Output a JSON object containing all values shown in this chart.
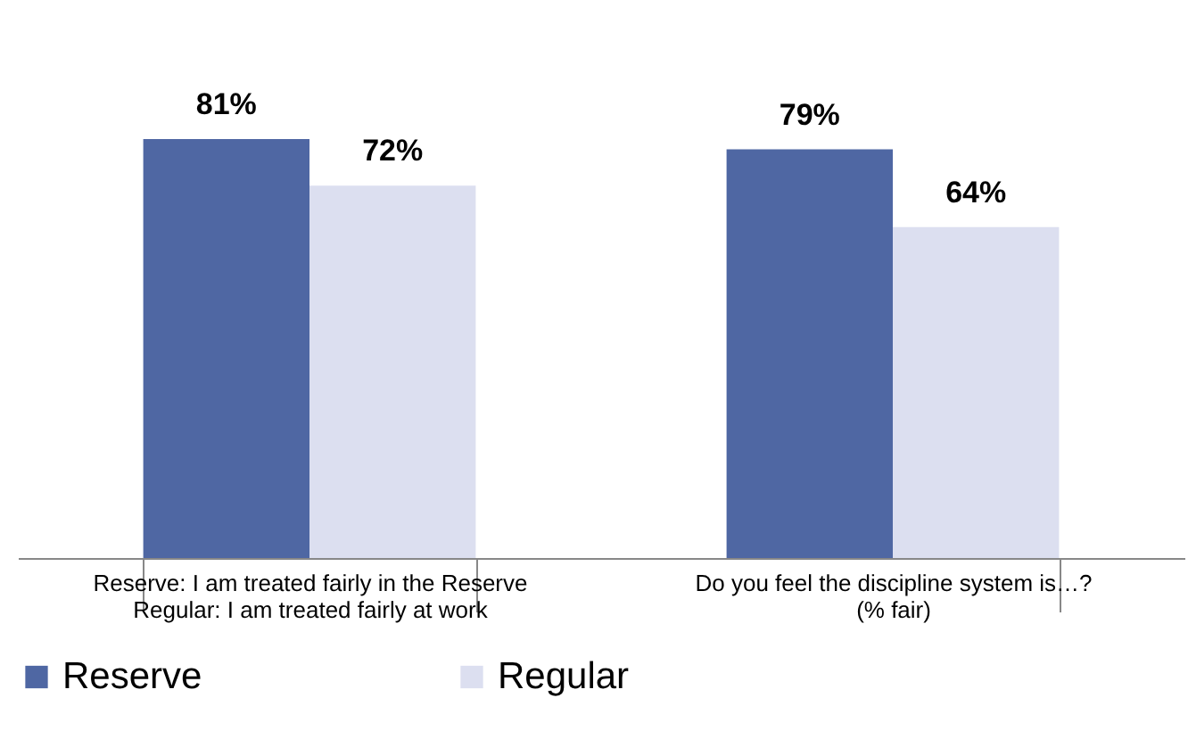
{
  "chart_data": {
    "type": "bar",
    "categories": [
      "Reserve: I am treated fairly in the Reserve\nRegular: I am treated fairly at work",
      "Do you feel the discipline system is…?\n(% fair)"
    ],
    "series": [
      {
        "name": "Reserve",
        "color": "#4f67a3",
        "values": [
          81,
          79
        ],
        "value_labels": [
          "81%",
          "79%"
        ]
      },
      {
        "name": "Regular",
        "color": "#dcdff0",
        "values": [
          72,
          64
        ],
        "value_labels": [
          "72%",
          "64%"
        ]
      }
    ],
    "legend": "bottom",
    "grid": false
  }
}
